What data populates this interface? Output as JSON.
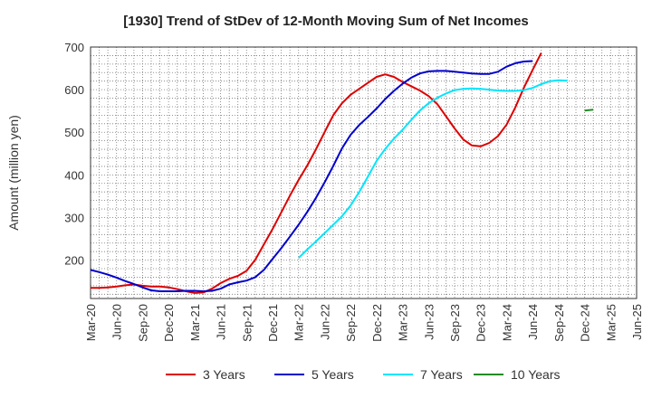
{
  "chart_data": {
    "type": "line",
    "title": "[1930]  Trend of StDev of 12-Month Moving Sum of Net Incomes",
    "xlabel": "",
    "ylabel": "Amount (million yen)",
    "ylim": [
      110,
      700
    ],
    "yticks": [
      200,
      300,
      400,
      500,
      600,
      700
    ],
    "x_ticks": [
      "Mar-20",
      "Jun-20",
      "Sep-20",
      "Dec-20",
      "Mar-21",
      "Jun-21",
      "Sep-21",
      "Dec-21",
      "Mar-22",
      "Jun-22",
      "Sep-22",
      "Dec-22",
      "Mar-23",
      "Jun-23",
      "Sep-23",
      "Dec-23",
      "Mar-24",
      "Jun-24",
      "Sep-24",
      "Dec-24",
      "Mar-25",
      "Jun-25"
    ],
    "grid": true,
    "legend_position": "bottom",
    "series": [
      {
        "name": "3 Years",
        "color": "#dd0000",
        "start": "Mar-20",
        "values": [
          135,
          135,
          136,
          138,
          141,
          143,
          140,
          138,
          138,
          136,
          132,
          127,
          123,
          124,
          133,
          146,
          156,
          163,
          175,
          201,
          237,
          273,
          312,
          351,
          388,
          422,
          460,
          500,
          540,
          568,
          588,
          602,
          616,
          630,
          636,
          630,
          618,
          608,
          598,
          585,
          566,
          538,
          509,
          483,
          469,
          467,
          475,
          491,
          518,
          558,
          605,
          646,
          686
        ]
      },
      {
        "name": "5 Years",
        "color": "#0000cc",
        "start": "Mar-20",
        "values": [
          177,
          172,
          166,
          159,
          151,
          144,
          136,
          129,
          127,
          127,
          127,
          128,
          128,
          127,
          128,
          133,
          143,
          148,
          152,
          160,
          177,
          203,
          228,
          255,
          283,
          313,
          346,
          382,
          421,
          462,
          494,
          517,
          536,
          556,
          578,
          597,
          614,
          628,
          638,
          643,
          644,
          644,
          642,
          640,
          638,
          637,
          637,
          642,
          654,
          662,
          666,
          667
        ]
      },
      {
        "name": "7 Years",
        "color": "#00e5ff",
        "start": "Mar-22",
        "values": [
          205,
          225,
          244,
          263,
          283,
          303,
          328,
          360,
          396,
          433,
          461,
          485,
          506,
          529,
          551,
          568,
          581,
          591,
          599,
          602,
          603,
          602,
          600,
          598,
          597,
          597,
          599,
          604,
          613,
          620,
          622,
          621
        ]
      },
      {
        "name": "10 Years",
        "color": "#228b22",
        "start": "Dec-24",
        "values": [
          551,
          553
        ]
      }
    ]
  }
}
